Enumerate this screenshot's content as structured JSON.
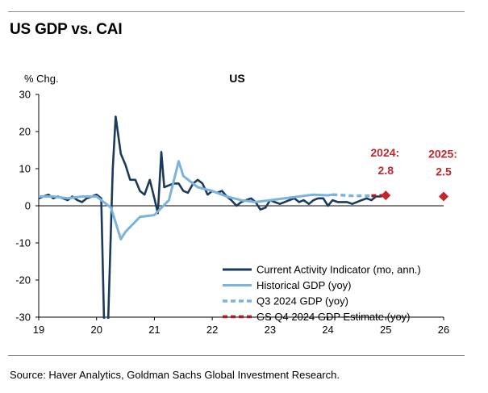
{
  "header": {
    "title": "US GDP vs. CAI"
  },
  "footer": {
    "source": "Source: Haver Analytics, Goldman Sachs Global Investment Research."
  },
  "chart_data": {
    "type": "line",
    "title": "US",
    "ylabel": "% Chg.",
    "xlabel": "",
    "ylim": [
      -30,
      30
    ],
    "xlim": [
      2019,
      2026
    ],
    "yticks": [
      30,
      20,
      10,
      0,
      -10,
      -20,
      -30
    ],
    "xticks": [
      {
        "value": 2019,
        "label": "19"
      },
      {
        "value": 2020,
        "label": "20"
      },
      {
        "value": 2021,
        "label": "21"
      },
      {
        "value": 2022,
        "label": "22"
      },
      {
        "value": 2023,
        "label": "23"
      },
      {
        "value": 2024,
        "label": "24"
      },
      {
        "value": 2025,
        "label": "25"
      },
      {
        "value": 2026,
        "label": "26"
      }
    ],
    "legend_position": "bottom-right",
    "series": [
      {
        "name": "Current Activity Indicator (mo, ann.)",
        "color": "#1b3a5c",
        "style": "solid",
        "x": [
          2019.0,
          2019.08,
          2019.17,
          2019.25,
          2019.33,
          2019.42,
          2019.5,
          2019.58,
          2019.67,
          2019.75,
          2019.83,
          2019.92,
          2020.0,
          2020.08,
          2020.13,
          2020.2,
          2020.28,
          2020.33,
          2020.42,
          2020.5,
          2020.58,
          2020.67,
          2020.75,
          2020.83,
          2020.92,
          2021.0,
          2021.06,
          2021.12,
          2021.17,
          2021.25,
          2021.33,
          2021.42,
          2021.5,
          2021.58,
          2021.67,
          2021.75,
          2021.83,
          2021.92,
          2022.0,
          2022.08,
          2022.17,
          2022.25,
          2022.33,
          2022.42,
          2022.5,
          2022.58,
          2022.67,
          2022.75,
          2022.83,
          2022.92,
          2023.0,
          2023.08,
          2023.17,
          2023.25,
          2023.33,
          2023.42,
          2023.5,
          2023.58,
          2023.67,
          2023.75,
          2023.83,
          2023.92,
          2024.0,
          2024.08,
          2024.17,
          2024.25,
          2024.33,
          2024.42,
          2024.5,
          2024.58,
          2024.67,
          2024.75,
          2024.83,
          2024.92
        ],
        "y": [
          2.0,
          2.5,
          3.0,
          2.0,
          2.5,
          2.0,
          1.5,
          2.5,
          1.5,
          1.0,
          2.0,
          2.5,
          3.0,
          2.0,
          -31,
          -31,
          10,
          24,
          14,
          11,
          7,
          7,
          4,
          3,
          7,
          2,
          -2,
          14.5,
          5,
          5.5,
          6,
          6,
          4,
          3.5,
          6,
          7,
          6,
          3,
          4,
          3.5,
          4,
          2.5,
          1.5,
          0,
          1,
          1.5,
          2,
          1,
          -1,
          -0.5,
          1.5,
          1,
          0.5,
          1,
          1.5,
          2,
          1,
          1.5,
          0.5,
          1.5,
          2,
          2,
          0,
          1.5,
          1,
          1,
          1,
          0.5,
          1,
          1.5,
          2,
          1.5,
          2.5,
          2.5
        ]
      },
      {
        "name": "Historical GDP (yoy)",
        "color": "#7ab3de",
        "style": "solid",
        "x": [
          2019.0,
          2019.25,
          2019.5,
          2019.75,
          2020.0,
          2020.25,
          2020.42,
          2020.5,
          2020.75,
          2021.0,
          2021.25,
          2021.42,
          2021.5,
          2021.75,
          2022.0,
          2022.25,
          2022.5,
          2022.75,
          2023.0,
          2023.25,
          2023.5,
          2023.75,
          2024.0,
          2024.08
        ],
        "y": [
          2.5,
          2.5,
          2.0,
          2.5,
          2.5,
          -0.5,
          -9,
          -7,
          -3,
          -2.5,
          1.5,
          12,
          8,
          5,
          4,
          2.5,
          1.5,
          1,
          1.5,
          2,
          2.5,
          3,
          2.8,
          3.0
        ]
      },
      {
        "name": "Q3 2024 GDP (yoy)",
        "color": "#7ab3de",
        "style": "dashed",
        "x": [
          2024.08,
          2024.42,
          2024.75
        ],
        "y": [
          3.0,
          2.7,
          2.7
        ]
      },
      {
        "name": "GS Q4 2024 GDP Estimate (yoy)",
        "color": "#a21f24",
        "style": "dashed",
        "x": [
          2024.75,
          2025.0
        ],
        "y": [
          2.7,
          2.8
        ]
      }
    ],
    "markers": [
      {
        "x": 2025.0,
        "y": 2.8,
        "label_year": "2024:",
        "label_value": "2.8",
        "color": "#c0282d"
      },
      {
        "x": 2026.0,
        "y": 2.5,
        "label_year": "2025:",
        "label_value": "2.5",
        "color": "#c0282d"
      }
    ]
  }
}
